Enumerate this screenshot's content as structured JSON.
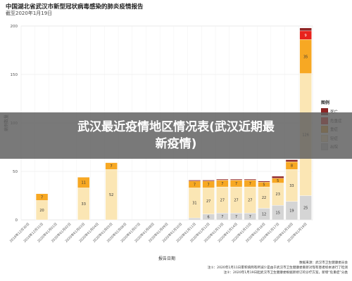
{
  "chart_data": {
    "type": "bar",
    "stacked": true,
    "title": "中国湖北省武汉市新型冠状病毒感染的肺炎疫情报告",
    "subtitle": "截至2020年1月19日",
    "xlabel": "报告日期",
    "ylabel": "病例数量",
    "ylim": [
      0,
      200
    ],
    "yticks": [
      0,
      50,
      100,
      150,
      200
    ],
    "grid": true,
    "legend_title": "图例",
    "legend_position": "right",
    "categories": [
      "2019年12月30日",
      "2019年12月31日",
      "2020年01月01日",
      "2020年01月02日",
      "2020年01月03日",
      "2020年01月04日",
      "2020年01月05日",
      "2020年01月06日",
      "2020年01月07日",
      "2020年01月08日",
      "2020年01月09日",
      "2020年01月10日",
      "2020年01月11日",
      "2020年01月12日",
      "2020年01月13日",
      "2020年01月14日",
      "2020年01月15日",
      "2020年01月16日",
      "2020年01月17日",
      "2020年01月18日",
      "2020年01月19日"
    ],
    "series": [
      {
        "name": "出院",
        "color": "#d5d5d5",
        "values": [
          0,
          0,
          0,
          0,
          0,
          0,
          0,
          0,
          0,
          0,
          0,
          0,
          2,
          6,
          7,
          7,
          7,
          12,
          15,
          19,
          25
        ]
      },
      {
        "name": "轻症",
        "color": "#fbe6b4",
        "values": [
          0,
          20,
          0,
          0,
          33,
          0,
          52,
          0,
          0,
          0,
          0,
          0,
          31,
          27,
          27,
          27,
          27,
          22,
          23,
          33,
          126
        ]
      },
      {
        "name": "重症",
        "color": "#f7a823",
        "values": [
          0,
          7,
          0,
          0,
          11,
          0,
          7,
          0,
          0,
          0,
          0,
          0,
          7,
          7,
          7,
          7,
          7,
          5,
          5,
          8,
          35
        ]
      },
      {
        "name": "危重症",
        "color": "#e8231c",
        "values": [
          0,
          0,
          0,
          0,
          0,
          0,
          0,
          0,
          0,
          0,
          0,
          0,
          0,
          0,
          0,
          0,
          0,
          0,
          0,
          0,
          9
        ]
      },
      {
        "name": "死亡",
        "color": "#8f2424",
        "values": [
          0,
          0,
          0,
          0,
          0,
          0,
          0,
          0,
          0,
          0,
          0,
          0,
          1,
          1,
          1,
          1,
          1,
          1,
          2,
          2,
          3
        ]
      }
    ]
  },
  "banner": {
    "line1": "武汉最近疫情地区情况表(武汉近期最",
    "line2": "新疫情)"
  },
  "footer": {
    "source": "数据来源：武汉市卫生健康委员会",
    "note1": "注①：2020年1月11日累积病例有所减少是由于武汉市卫生健康委重新对现有患者标本进行了检测",
    "note2": "注②：2020年1月19日起武汉市卫生健康委根据新修订的诊疗方案，新增“危重症”分类"
  }
}
